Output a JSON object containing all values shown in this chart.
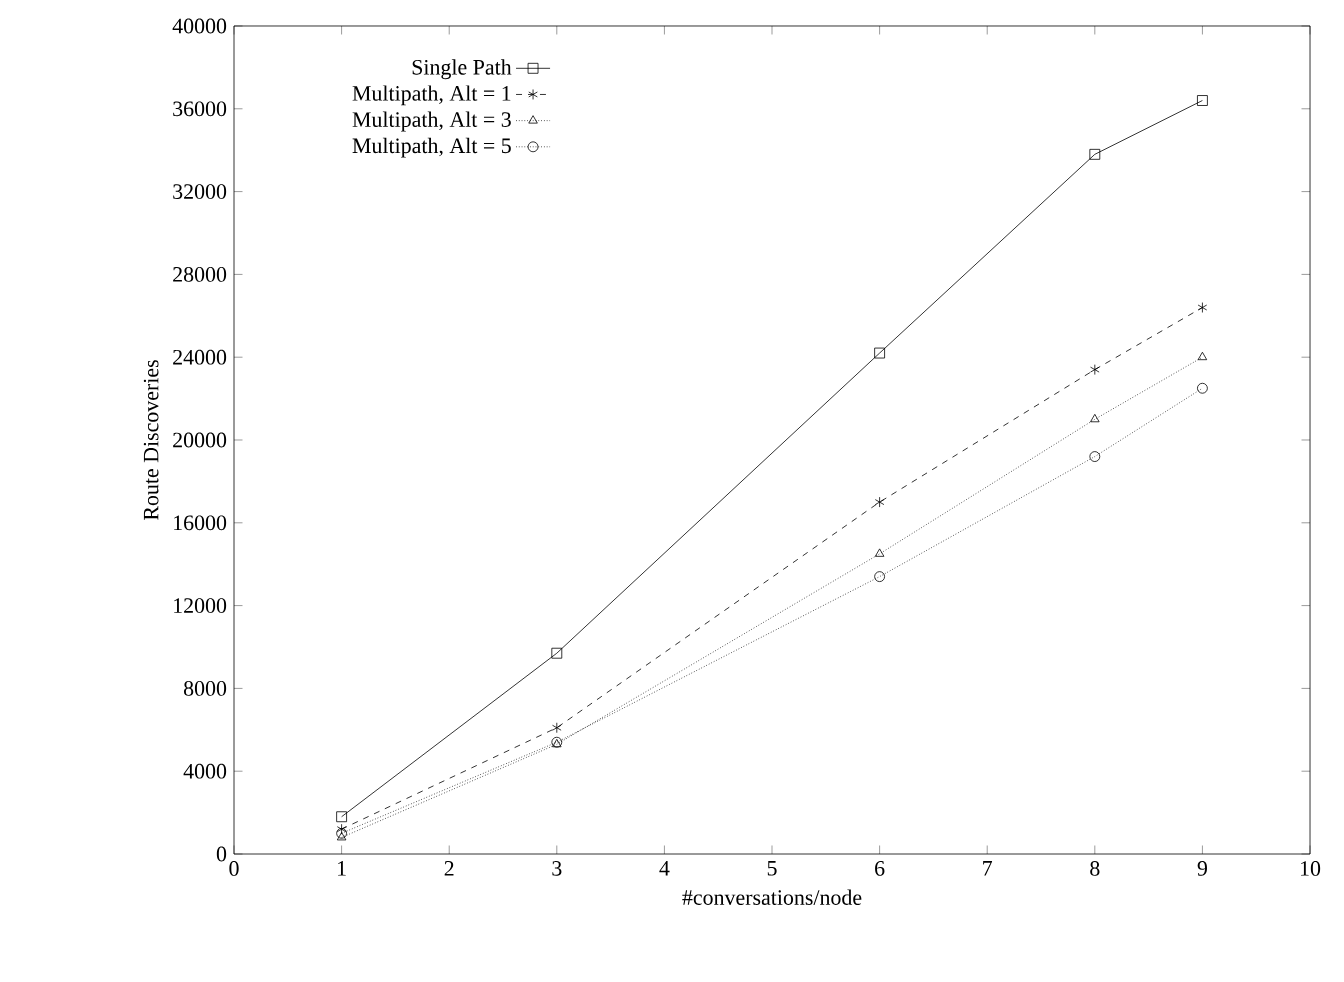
{
  "chart_data": {
    "type": "line",
    "xlabel": "#conversations/node",
    "ylabel": "Route Discoveries",
    "x": [
      1,
      3,
      6,
      8,
      9
    ],
    "series": [
      {
        "name": "Single Path",
        "color": "#000000",
        "marker": "square",
        "line_style": "solid",
        "values": [
          1800,
          9700,
          24200,
          33800,
          36400
        ]
      },
      {
        "name": "Multipath, Alt = 1",
        "color": "#000000",
        "marker": "cross",
        "line_style": "dashed",
        "values": [
          1200,
          6100,
          17000,
          23400,
          26400
        ]
      },
      {
        "name": "Multipath, Alt = 3",
        "color": "#000000",
        "marker": "triangle",
        "line_style": "dotted",
        "values": [
          800,
          5300,
          14500,
          21000,
          24000
        ]
      },
      {
        "name": "Multipath, Alt = 5",
        "color": "#000000",
        "marker": "circle",
        "line_style": "dotted",
        "values": [
          1000,
          5400,
          13400,
          19200,
          22500
        ]
      }
    ],
    "xlim": [
      0,
      10
    ],
    "xticks": [
      0,
      1,
      2,
      3,
      4,
      5,
      6,
      7,
      8,
      9,
      10
    ],
    "ylim": [
      0,
      40000
    ],
    "yticks": [
      0,
      4000,
      8000,
      12000,
      16000,
      20000,
      24000,
      28000,
      32000,
      36000,
      40000
    ],
    "grid": false,
    "legend": "top left"
  }
}
